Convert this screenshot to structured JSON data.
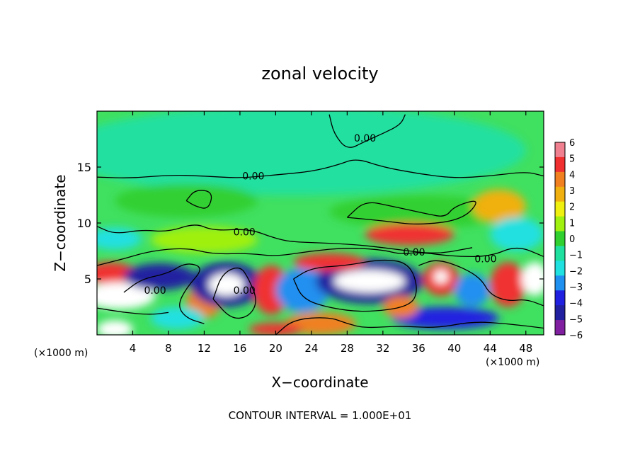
{
  "chart_data": {
    "type": "heatmap",
    "title": "zonal velocity",
    "xlabel": "X−coordinate",
    "ylabel": "Z−coordinate",
    "x_unit_left": "(×1000 m)",
    "x_unit_right": "(×1000 m)",
    "xlim": [
      0,
      50
    ],
    "ylim": [
      0,
      20
    ],
    "x_ticks": [
      4,
      8,
      12,
      16,
      20,
      24,
      28,
      32,
      36,
      40,
      44,
      48
    ],
    "x_tick_labels": [
      "4",
      "8",
      "12",
      "16",
      "20",
      "24",
      "28",
      "32",
      "36",
      "40",
      "44",
      "48"
    ],
    "y_ticks": [
      5,
      10,
      15
    ],
    "y_tick_labels": [
      "5",
      "10",
      "15"
    ],
    "footer": "CONTOUR INTERVAL = 1.000E+01",
    "contour_labels": [
      {
        "text": "0.00",
        "x": 30,
        "y": 17.6
      },
      {
        "text": "0.00",
        "x": 17.5,
        "y": 14.2
      },
      {
        "text": "0.00",
        "x": 16.5,
        "y": 9.2
      },
      {
        "text": "0.00",
        "x": 35.5,
        "y": 7.4
      },
      {
        "text": "0.00",
        "x": 43.5,
        "y": 6.8
      },
      {
        "text": "0.00",
        "x": 6.5,
        "y": 4.0
      },
      {
        "text": "0.00",
        "x": 16.5,
        "y": 4.0
      }
    ],
    "colorbar": {
      "levels": [
        6,
        5,
        4,
        3,
        2,
        1,
        0,
        -1,
        -2,
        -3,
        -4,
        -5,
        -6
      ],
      "labels": [
        "6",
        "5",
        "4",
        "3",
        "2",
        "1",
        "0",
        "−1",
        "−2",
        "−3",
        "−4",
        "−5",
        "−6"
      ],
      "colors": [
        "#f07f8f",
        "#f03030",
        "#f08020",
        "#f0b010",
        "#f0f010",
        "#a0f010",
        "#30d030",
        "#20e0a0",
        "#20e0e0",
        "#2090f0",
        "#2020e0",
        "#2020a0",
        "#8020a0"
      ]
    },
    "background_color": "#40e060",
    "blobs": [
      {
        "x": 22,
        "y": 16.5,
        "rx": 26,
        "ry": 4,
        "v": -0.8
      },
      {
        "x": 10,
        "y": 12,
        "rx": 8,
        "ry": 1.5,
        "v": 0.5
      },
      {
        "x": 36,
        "y": 11,
        "rx": 10,
        "ry": 1.5,
        "v": 0.5
      },
      {
        "x": 2,
        "y": 8.6,
        "rx": 3,
        "ry": 1,
        "v": -2.2
      },
      {
        "x": 12,
        "y": 8.5,
        "rx": 6,
        "ry": 1.2,
        "v": 1.5
      },
      {
        "x": 35,
        "y": 9,
        "rx": 5,
        "ry": 1,
        "v": 5
      },
      {
        "x": 45,
        "y": 11.5,
        "rx": 3,
        "ry": 1.5,
        "v": 3
      },
      {
        "x": 47,
        "y": 9,
        "rx": 3,
        "ry": 1.5,
        "v": -2.2
      },
      {
        "x": 1.5,
        "y": 5.5,
        "rx": 3,
        "ry": 1,
        "v": 5
      },
      {
        "x": 2.5,
        "y": 3.5,
        "rx": 4,
        "ry": 1.2,
        "v": 6.5
      },
      {
        "x": 7,
        "y": 5.2,
        "rx": 4,
        "ry": 1.2,
        "v": -4.5
      },
      {
        "x": 12,
        "y": 3,
        "rx": 2,
        "ry": 1.5,
        "v": 4
      },
      {
        "x": 14.5,
        "y": 4.5,
        "rx": 4,
        "ry": 2,
        "v": -4.5
      },
      {
        "x": 14.5,
        "y": 4.5,
        "rx": 2,
        "ry": 1,
        "v": 6.5
      },
      {
        "x": 19.5,
        "y": 4,
        "rx": 2,
        "ry": 2.2,
        "v": 5
      },
      {
        "x": 23,
        "y": 4,
        "rx": 3,
        "ry": 2,
        "v": -3
      },
      {
        "x": 30.5,
        "y": 4.8,
        "rx": 6,
        "ry": 2,
        "v": -4.5
      },
      {
        "x": 30.5,
        "y": 4.8,
        "rx": 4,
        "ry": 1,
        "v": 6.5
      },
      {
        "x": 26,
        "y": 6.5,
        "rx": 4,
        "ry": 0.8,
        "v": 5
      },
      {
        "x": 38.5,
        "y": 5,
        "rx": 2,
        "ry": 1.5,
        "v": 5
      },
      {
        "x": 38.5,
        "y": 5.2,
        "rx": 0.8,
        "ry": 0.6,
        "v": 6.5
      },
      {
        "x": 42,
        "y": 4,
        "rx": 2,
        "ry": 1.5,
        "v": -3
      },
      {
        "x": 46,
        "y": 4.5,
        "rx": 2,
        "ry": 2,
        "v": 5
      },
      {
        "x": 49,
        "y": 5,
        "rx": 1.5,
        "ry": 1.5,
        "v": 6.5
      },
      {
        "x": 39,
        "y": 1.5,
        "rx": 6,
        "ry": 1,
        "v": -3.5
      },
      {
        "x": 25,
        "y": 1,
        "rx": 4,
        "ry": 1,
        "v": 4
      },
      {
        "x": 2,
        "y": 0.5,
        "rx": 2,
        "ry": 0.8,
        "v": 6.5
      },
      {
        "x": 20,
        "y": 0.5,
        "rx": 3,
        "ry": 0.6,
        "v": 5
      },
      {
        "x": 34,
        "y": 2.5,
        "rx": 2,
        "ry": 1,
        "v": 4
      },
      {
        "x": 9,
        "y": 1.5,
        "rx": 3,
        "ry": 1,
        "v": -2
      }
    ],
    "contours": [
      [
        [
          0,
          14.1
        ],
        [
          4,
          14.0
        ],
        [
          8,
          14.3
        ],
        [
          12,
          14.2
        ],
        [
          16,
          14.0
        ],
        [
          20,
          14.3
        ],
        [
          24,
          14.6
        ],
        [
          27,
          15.2
        ],
        [
          29,
          15.8
        ],
        [
          32,
          15.0
        ],
        [
          36,
          14.4
        ],
        [
          40,
          14.0
        ],
        [
          44,
          14.2
        ],
        [
          48,
          14.6
        ],
        [
          50,
          14.2
        ]
      ],
      [
        [
          26,
          19.7
        ],
        [
          26.5,
          18
        ],
        [
          28,
          16.5
        ],
        [
          30,
          17.3
        ],
        [
          32,
          18
        ],
        [
          34,
          18.8
        ],
        [
          34.5,
          19.7
        ]
      ],
      [
        [
          10,
          12.0
        ],
        [
          11,
          13.0
        ],
        [
          13,
          12.8
        ],
        [
          12.5,
          11.2
        ],
        [
          11,
          11.5
        ],
        [
          10,
          12.0
        ]
      ],
      [
        [
          28,
          10.5
        ],
        [
          30,
          12
        ],
        [
          33,
          11.5
        ],
        [
          37,
          10.8
        ],
        [
          39,
          10.5
        ],
        [
          40,
          11.5
        ],
        [
          43,
          12.2
        ],
        [
          41,
          10.3
        ],
        [
          36,
          9.8
        ],
        [
          32,
          10.2
        ],
        [
          28,
          10.5
        ]
      ],
      [
        [
          0,
          9.7
        ],
        [
          2,
          9.0
        ],
        [
          5,
          9.4
        ],
        [
          8,
          9.2
        ],
        [
          11,
          10.0
        ],
        [
          13,
          9.3
        ],
        [
          17,
          9.5
        ],
        [
          20,
          8.6
        ],
        [
          22,
          8.3
        ],
        [
          26,
          8.2
        ],
        [
          30,
          8.0
        ],
        [
          34,
          7.6
        ],
        [
          38,
          7.2
        ],
        [
          42,
          7.8
        ]
      ],
      [
        [
          0,
          6.2
        ],
        [
          3,
          6.8
        ],
        [
          6,
          7.5
        ],
        [
          10,
          7.8
        ],
        [
          13,
          7.2
        ],
        [
          17,
          7.3
        ],
        [
          20,
          7.0
        ],
        [
          24,
          7.5
        ],
        [
          28,
          7.8
        ],
        [
          32,
          7.6
        ],
        [
          34,
          7.2
        ],
        [
          36,
          7.4
        ],
        [
          40,
          7.0
        ],
        [
          44,
          7.0
        ],
        [
          47,
          8.0
        ],
        [
          50,
          7.0
        ]
      ],
      [
        [
          3,
          3.8
        ],
        [
          5,
          5.0
        ],
        [
          8,
          5.5
        ],
        [
          10,
          6.5
        ],
        [
          12,
          6.0
        ],
        [
          10,
          4.2
        ],
        [
          9,
          2.6
        ],
        [
          10,
          1.5
        ],
        [
          12,
          1.0
        ]
      ],
      [
        [
          13,
          3.2
        ],
        [
          14,
          5.5
        ],
        [
          16,
          6.2
        ],
        [
          17,
          5.0
        ],
        [
          18,
          3.0
        ],
        [
          17,
          1.6
        ],
        [
          15,
          1.4
        ],
        [
          13,
          3.2
        ]
      ],
      [
        [
          22,
          5.0
        ],
        [
          24,
          6.0
        ],
        [
          28,
          6.2
        ],
        [
          32,
          6.8
        ],
        [
          35,
          6.4
        ],
        [
          36,
          4.0
        ],
        [
          35,
          2.5
        ],
        [
          30,
          2.0
        ],
        [
          26,
          2.4
        ],
        [
          23,
          3.2
        ],
        [
          22,
          5.0
        ]
      ],
      [
        [
          0,
          2.4
        ],
        [
          3,
          2.0
        ],
        [
          6,
          1.8
        ],
        [
          8,
          2.0
        ]
      ],
      [
        [
          36,
          6.2
        ],
        [
          38,
          6.8
        ],
        [
          41,
          6.0
        ],
        [
          43,
          5.0
        ],
        [
          44,
          3.6
        ],
        [
          46,
          3.0
        ],
        [
          48,
          3.2
        ],
        [
          50,
          2.6
        ]
      ],
      [
        [
          20,
          0
        ],
        [
          22,
          1.4
        ],
        [
          26,
          1.6
        ],
        [
          28,
          1.0
        ],
        [
          30,
          0.6
        ],
        [
          34,
          0.8
        ],
        [
          38,
          0.6
        ],
        [
          42,
          1.2
        ],
        [
          46,
          1.0
        ],
        [
          50,
          0.6
        ]
      ]
    ]
  }
}
